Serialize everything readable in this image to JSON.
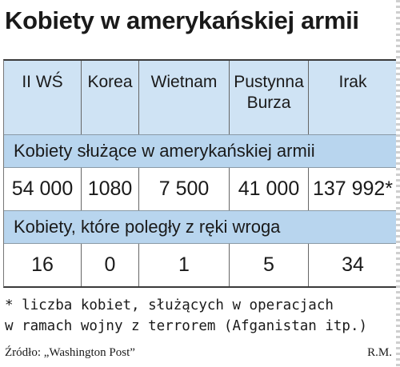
{
  "title": "Kobiety w amerykańskiej armii",
  "chart_data": {
    "type": "table",
    "title": "Kobiety w amerykańskiej armii",
    "columns": [
      "II WŚ",
      "Korea",
      "Wietnam",
      "Pustynna\nBurza",
      "Irak"
    ],
    "sections": [
      {
        "label": "Kobiety służące w amerykańskiej armii",
        "values": [
          "54 000",
          "1080",
          "7 500",
          "41 000",
          "137 992*"
        ],
        "numeric": [
          54000,
          1080,
          7500,
          41000,
          137992
        ]
      },
      {
        "label": "Kobiety, które poległy z ręki wroga",
        "values": [
          "16",
          "0",
          "1",
          "5",
          "34"
        ],
        "numeric": [
          16,
          0,
          1,
          5,
          34
        ]
      }
    ]
  },
  "footnote": {
    "line1": "* liczba kobiet, służących w operacjach",
    "line2": "w ramach wojny z terrorem (Afganistan itp.)"
  },
  "source": "Źródło: „Washington Post”",
  "author": "R.M.",
  "colors": {
    "header_bg": "#cfe3f4",
    "band_bg": "#b8d5ee",
    "text": "#1a1a1a"
  }
}
